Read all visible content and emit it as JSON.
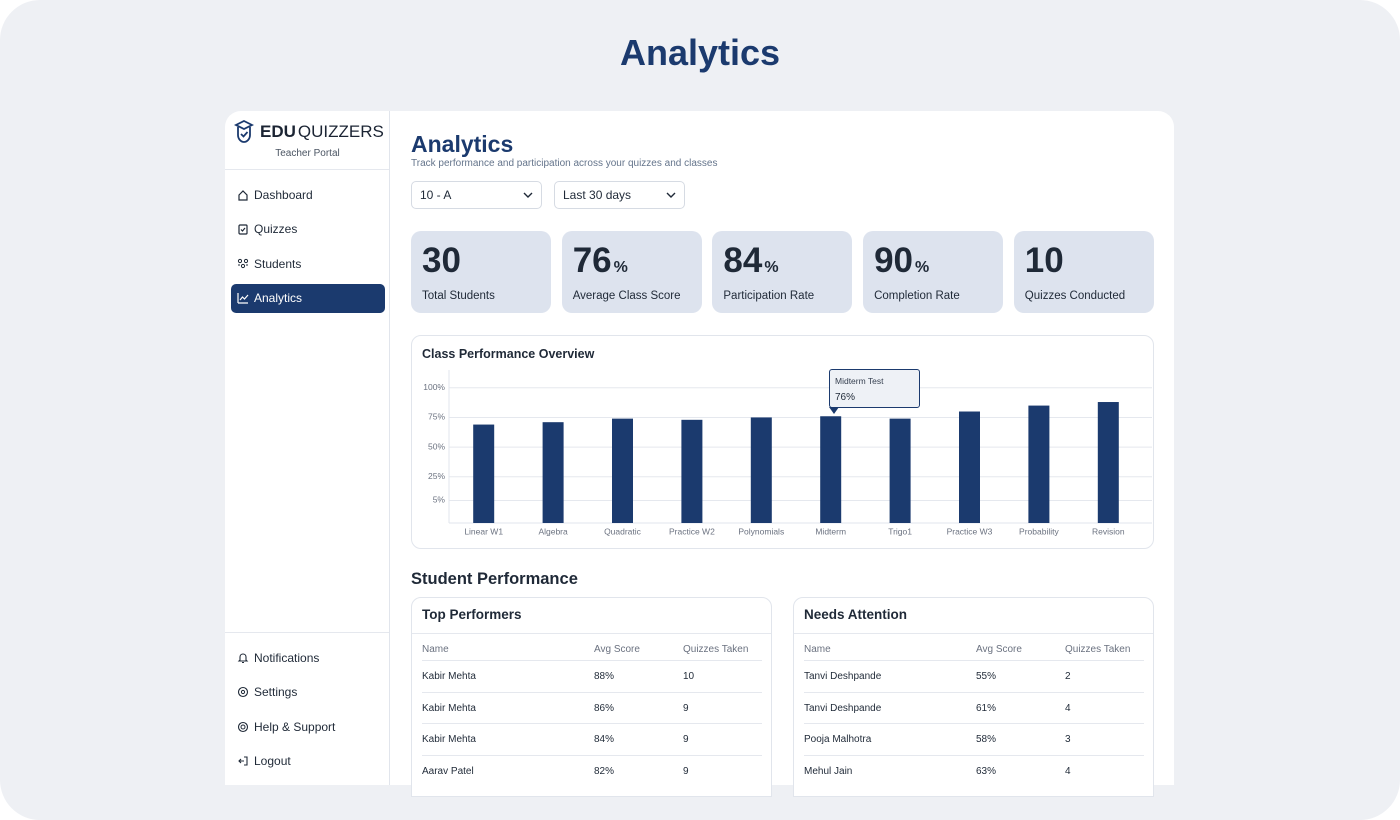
{
  "page_title": "Analytics",
  "sidebar": {
    "brand_bold": "EDU",
    "brand_light": "QUIZZERS",
    "subtitle": "Teacher Portal",
    "nav": [
      "Dashboard",
      "Quizzes",
      "Students",
      "Analytics"
    ],
    "footer_nav": [
      "Notifications",
      "Settings",
      "Help & Support",
      "Logout"
    ]
  },
  "header": {
    "title": "Analytics",
    "subtitle": "Track performance and participation across your quizzes and classes"
  },
  "filters": [
    "10 - A",
    "Last 30 days"
  ],
  "stats": [
    {
      "value": 30,
      "label": "Total Students"
    },
    {
      "value": 76,
      "unit": "%",
      "label": "Average Class Score"
    },
    {
      "value": 84,
      "unit": "%",
      "label": "Participation Rate"
    },
    {
      "value": 90,
      "unit": "%",
      "label": "Completion Rate"
    },
    {
      "value": 10,
      "label": "Quizzes Conducted"
    }
  ],
  "chart_data": {
    "type": "bar",
    "title": "Class Performance Overview",
    "categories": [
      "Linear W1",
      "Algebra",
      "Quadratic",
      "Practice W2",
      "Polynomials",
      "Midterm",
      "Trigo1",
      "Practice W3",
      "Probability",
      "Revision"
    ],
    "values": [
      69,
      71,
      74,
      73,
      75,
      76,
      74,
      80,
      85,
      88
    ],
    "color": "#1b3a6e",
    "ylim": [
      -14,
      115
    ],
    "yticks": [
      {
        "value": 5,
        "label": "5%"
      },
      {
        "value": 25,
        "label": "25%"
      },
      {
        "value": 50,
        "label": "50%"
      },
      {
        "value": 75,
        "label": "75%"
      },
      {
        "value": 100,
        "label": "100%"
      }
    ],
    "grid": true
  },
  "tooltip": {
    "title": "Midterm Test",
    "label": "76%"
  },
  "section_title": "Student Performance",
  "tables": [
    {
      "title": "Top Performers",
      "columns": [
        "Name",
        "Avg Score",
        "Quizzes Taken"
      ],
      "rows": [
        [
          "Kabir Mehta",
          "88%",
          "10"
        ],
        [
          "Kabir Mehta",
          "86%",
          "9"
        ],
        [
          "Kabir Mehta",
          "84%",
          "9"
        ],
        [
          "Aarav Patel",
          "82%",
          "9"
        ]
      ]
    },
    {
      "title": "Needs Attention",
      "columns": [
        "Name",
        "Avg Score",
        "Quizzes Taken"
      ],
      "rows": [
        [
          "Tanvi Deshpande",
          "55%",
          "2"
        ],
        [
          "Tanvi Deshpande",
          "61%",
          "4"
        ],
        [
          "Pooja Malhotra",
          "58%",
          "3"
        ],
        [
          "Mehul Jain",
          "63%",
          "4"
        ]
      ]
    }
  ]
}
